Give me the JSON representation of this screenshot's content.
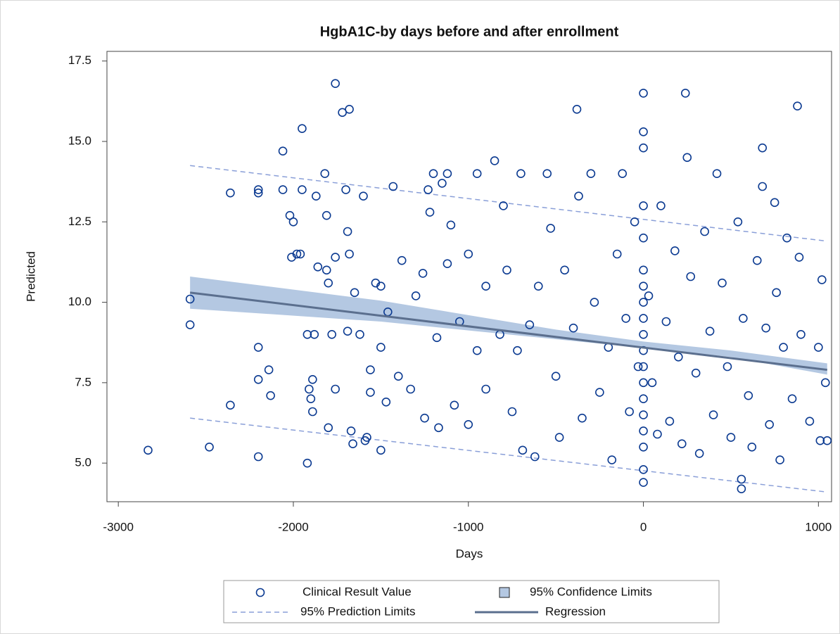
{
  "chart_data": {
    "type": "scatter",
    "title": "HgbA1C-by days before and after enrollment",
    "x_label": "Days",
    "y_label": "Predicted",
    "xlim": [
      -3065,
      1075
    ],
    "ylim": [
      3.8,
      17.8
    ],
    "xticks": [
      -3000,
      -2000,
      -1000,
      0,
      1000
    ],
    "yticks": [
      {
        "value": 5,
        "label": "5.0"
      },
      7.5,
      {
        "value": 10,
        "label": "10.0"
      },
      12.5,
      {
        "value": 15,
        "label": "15.0"
      },
      17.5
    ],
    "series": [
      {
        "name": "Clinical Result Value",
        "kind": "points",
        "color": "#0b3a91",
        "x": [
          -2830,
          -2590,
          -2590,
          -2480,
          -2360,
          -2360,
          -2200,
          -2200,
          -2200,
          -2200,
          -2200,
          -2140,
          -2130,
          -2060,
          -2060,
          -2020,
          -2000,
          -2010,
          -1980,
          -1960,
          -1950,
          -1950,
          -1920,
          -1920,
          -1910,
          -1900,
          -1890,
          -1890,
          -1880,
          -1870,
          -1860,
          -1820,
          -1810,
          -1810,
          -1800,
          -1800,
          -1780,
          -1760,
          -1760,
          -1760,
          -1720,
          -1700,
          -1690,
          -1690,
          -1680,
          -1680,
          -1670,
          -1660,
          -1650,
          -1620,
          -1600,
          -1590,
          -1580,
          -1560,
          -1560,
          -1530,
          -1500,
          -1500,
          -1500,
          -1470,
          -1460,
          -1430,
          -1400,
          -1380,
          -1330,
          -1300,
          -1260,
          -1250,
          -1230,
          -1220,
          -1200,
          -1180,
          -1170,
          -1150,
          -1120,
          -1120,
          -1100,
          -1080,
          -1050,
          -1000,
          -1000,
          -950,
          -950,
          -900,
          -900,
          -850,
          -820,
          -800,
          -780,
          -750,
          -720,
          -700,
          -690,
          -650,
          -620,
          -600,
          -550,
          -530,
          -500,
          -480,
          -450,
          -400,
          -380,
          -370,
          -350,
          -300,
          -280,
          -250,
          -200,
          -180,
          -150,
          -120,
          -100,
          -80,
          -50,
          -30,
          0,
          0,
          0,
          0,
          0,
          0,
          0,
          0,
          0,
          0,
          0,
          0,
          0,
          0,
          0,
          0,
          0,
          0,
          0,
          30,
          50,
          80,
          100,
          130,
          150,
          180,
          200,
          220,
          240,
          250,
          270,
          300,
          320,
          350,
          380,
          400,
          420,
          450,
          480,
          500,
          540,
          560,
          560,
          570,
          600,
          620,
          650,
          680,
          680,
          700,
          720,
          750,
          760,
          780,
          800,
          820,
          850,
          880,
          890,
          900,
          950,
          1000,
          1010,
          1020,
          1040,
          1050
        ],
        "values": [
          5.4,
          10.1,
          9.3,
          5.5,
          13.4,
          6.8,
          13.5,
          13.4,
          8.6,
          7.6,
          5.2,
          7.9,
          7.1,
          14.7,
          13.5,
          12.7,
          12.5,
          11.4,
          11.5,
          11.5,
          15.4,
          13.5,
          9.0,
          5.0,
          7.3,
          7.0,
          6.6,
          7.6,
          9.0,
          13.3,
          11.1,
          14.0,
          12.7,
          11.0,
          10.6,
          6.1,
          9.0,
          16.8,
          11.4,
          7.3,
          15.9,
          13.5,
          9.1,
          12.2,
          16.0,
          11.5,
          6.0,
          5.6,
          10.3,
          9.0,
          13.3,
          5.7,
          5.8,
          7.9,
          7.2,
          10.6,
          10.5,
          8.6,
          5.4,
          6.9,
          9.7,
          13.6,
          7.7,
          11.3,
          7.3,
          10.2,
          10.9,
          6.4,
          13.5,
          12.8,
          14.0,
          8.9,
          6.1,
          13.7,
          14.0,
          11.2,
          12.4,
          6.8,
          9.4,
          11.5,
          6.2,
          14.0,
          8.5,
          10.5,
          7.3,
          14.4,
          9.0,
          13.0,
          11.0,
          6.6,
          8.5,
          14.0,
          5.4,
          9.3,
          5.2,
          10.5,
          14.0,
          12.3,
          7.7,
          5.8,
          11.0,
          9.2,
          16.0,
          13.3,
          6.4,
          14.0,
          10.0,
          7.2,
          8.6,
          5.1,
          11.5,
          14.0,
          9.5,
          6.6,
          12.5,
          8.0,
          16.5,
          15.3,
          14.8,
          13.0,
          12.0,
          11.0,
          10.5,
          10.0,
          9.5,
          9.0,
          8.5,
          8.0,
          7.5,
          7.0,
          6.5,
          6.0,
          5.5,
          4.8,
          4.4,
          10.2,
          7.5,
          5.9,
          13.0,
          9.4,
          6.3,
          11.6,
          8.3,
          5.6,
          16.5,
          14.5,
          10.8,
          7.8,
          5.3,
          12.2,
          9.1,
          6.5,
          14.0,
          10.6,
          8.0,
          5.8,
          12.5,
          4.2,
          4.5,
          9.5,
          7.1,
          5.5,
          11.3,
          14.8,
          13.6,
          9.2,
          6.2,
          13.1,
          10.3,
          5.1,
          8.6,
          12.0,
          7.0,
          16.1,
          11.4,
          9.0,
          6.3,
          8.6,
          5.7,
          10.7,
          7.5,
          5.7
        ]
      },
      {
        "name": "95% Confidence Limits",
        "kind": "band",
        "color": "#b4c8e2",
        "x": [
          -2590,
          -1500,
          -500,
          0,
          500,
          1050
        ],
        "lower": [
          9.8,
          9.4,
          8.85,
          8.58,
          8.3,
          7.75
        ],
        "upper": [
          10.8,
          10.05,
          9.15,
          8.78,
          8.5,
          8.1
        ]
      },
      {
        "name": "95% Prediction Limits",
        "kind": "limits",
        "color": "#8a9fd8",
        "x": [
          -2590,
          1050
        ],
        "lower": [
          6.4,
          4.1
        ],
        "upper": [
          14.25,
          11.9
        ]
      },
      {
        "name": "Regression",
        "kind": "line",
        "color": "#5b6f8e",
        "x": [
          -2590,
          1050
        ],
        "values": [
          10.3,
          7.9
        ]
      }
    ]
  }
}
